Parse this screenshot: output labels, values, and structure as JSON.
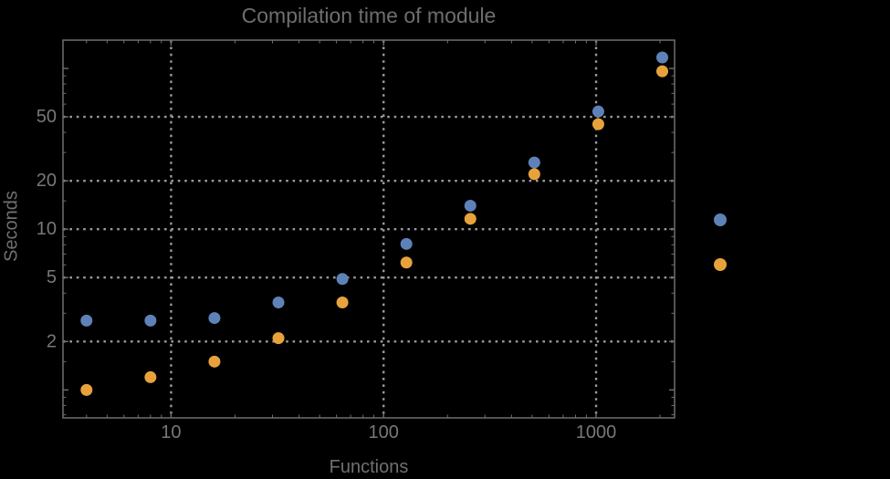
{
  "title": "Compilation time of module",
  "axes": {
    "x_label": "Functions",
    "y_label": "Seconds"
  },
  "colors": {
    "background": "#000000",
    "frame": "#6f6f6f",
    "gridline": "#9a9a9a",
    "title_text": "#6e6e6e",
    "axis_text": "#707070",
    "tick_text": "#787878",
    "series1": "#5e82b8",
    "series2": "#e8a23c"
  },
  "chart_data": {
    "type": "scatter",
    "title": "Compilation time of module",
    "xlabel": "Functions",
    "ylabel": "Seconds",
    "x_scale": "log",
    "y_scale": "log",
    "xlim": [
      3.1,
      2340
    ],
    "ylim": [
      0.67,
      150
    ],
    "grid": "dotted",
    "x": [
      4,
      8,
      16,
      32,
      64,
      128,
      256,
      512,
      1024,
      2048
    ],
    "series": [
      {
        "name": "series-1-blue",
        "color": "#5e82b8",
        "values": [
          2.7,
          2.7,
          2.8,
          3.5,
          4.9,
          8.1,
          14.0,
          26.0,
          54.0,
          117.0
        ]
      },
      {
        "name": "series-2-orange",
        "color": "#e8a23c",
        "values": [
          1.0,
          1.2,
          1.5,
          2.1,
          3.5,
          6.2,
          11.6,
          22.0,
          45.0,
          96.0
        ]
      }
    ],
    "x_ticks": {
      "major_values": [
        10,
        100,
        1000
      ],
      "major_labels": [
        "10",
        "100",
        "1000"
      ],
      "minor_values": [
        4,
        5,
        6,
        7,
        8,
        9,
        20,
        30,
        40,
        50,
        60,
        70,
        80,
        90,
        200,
        300,
        400,
        500,
        600,
        700,
        800,
        900,
        2000
      ]
    },
    "y_ticks": {
      "major_values": [
        2,
        5,
        10,
        20,
        50
      ],
      "major_labels": [
        "2",
        "5",
        "10",
        "20",
        "50"
      ],
      "unlabeled_major_values": [
        1,
        100
      ],
      "minor_values": [
        0.7,
        0.8,
        0.9,
        1.5,
        3,
        4,
        6,
        7,
        8,
        9,
        15,
        30,
        40,
        60,
        70,
        80,
        90
      ]
    },
    "gridline_values": {
      "x": [
        10,
        100,
        1000
      ],
      "y": [
        2,
        5,
        10,
        20,
        50
      ]
    },
    "legend": {
      "position": "right-outside",
      "markers": [
        {
          "name": "legend-marker-series-1",
          "color": "#5e82b8",
          "label": ""
        },
        {
          "name": "legend-marker-series-2",
          "color": "#e8a23c",
          "label": ""
        }
      ]
    }
  }
}
